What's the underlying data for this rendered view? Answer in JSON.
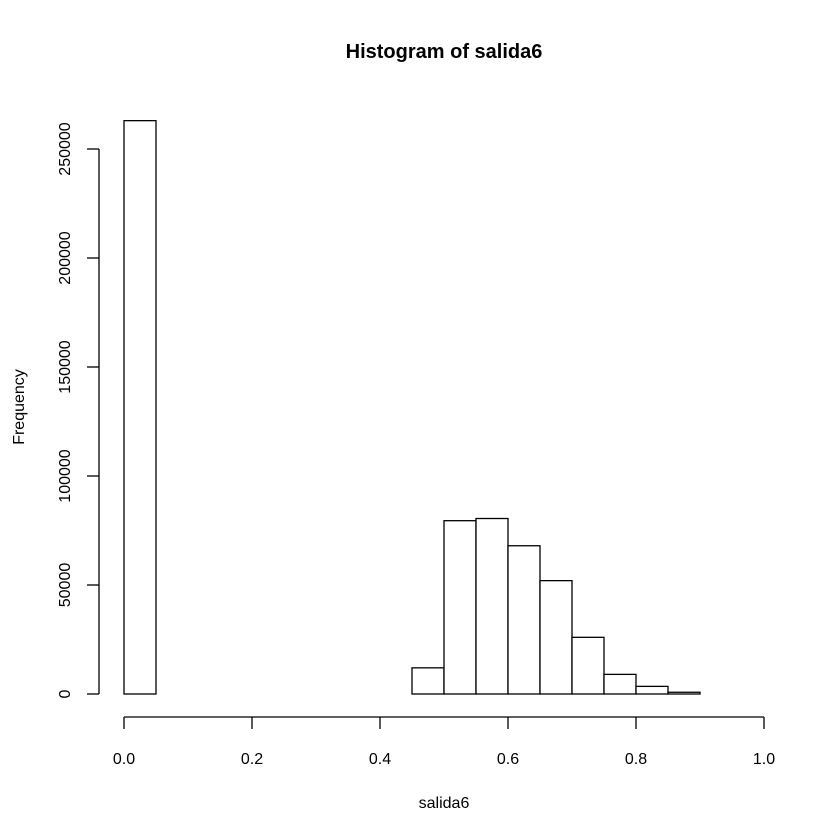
{
  "chart_data": {
    "type": "bar",
    "title": "Histogram of salida6",
    "xlabel": "salida6",
    "ylabel": "Frequency",
    "xlim": [
      0,
      1
    ],
    "ylim": [
      0,
      260000
    ],
    "grid": false,
    "bar_fill": "#ffffff",
    "bar_stroke": "#000000",
    "x_ticks": [
      {
        "value": 0.0,
        "label": "0.0"
      },
      {
        "value": 0.2,
        "label": "0.2"
      },
      {
        "value": 0.4,
        "label": "0.4"
      },
      {
        "value": 0.6,
        "label": "0.6"
      },
      {
        "value": 0.8,
        "label": "0.8"
      },
      {
        "value": 1.0,
        "label": "1.0"
      }
    ],
    "y_ticks": [
      {
        "value": 0,
        "label": "0"
      },
      {
        "value": 50000,
        "label": "50000"
      },
      {
        "value": 100000,
        "label": "100000"
      },
      {
        "value": 150000,
        "label": "150000"
      },
      {
        "value": 200000,
        "label": "200000"
      },
      {
        "value": 250000,
        "label": "250000"
      }
    ],
    "bins": [
      {
        "start": 0.0,
        "end": 0.05,
        "count": 263000
      },
      {
        "start": 0.05,
        "end": 0.1,
        "count": 0
      },
      {
        "start": 0.1,
        "end": 0.15,
        "count": 0
      },
      {
        "start": 0.15,
        "end": 0.2,
        "count": 0
      },
      {
        "start": 0.2,
        "end": 0.25,
        "count": 0
      },
      {
        "start": 0.25,
        "end": 0.3,
        "count": 0
      },
      {
        "start": 0.3,
        "end": 0.35,
        "count": 0
      },
      {
        "start": 0.35,
        "end": 0.4,
        "count": 0
      },
      {
        "start": 0.4,
        "end": 0.45,
        "count": 0
      },
      {
        "start": 0.45,
        "end": 0.5,
        "count": 12000
      },
      {
        "start": 0.5,
        "end": 0.55,
        "count": 79500
      },
      {
        "start": 0.55,
        "end": 0.6,
        "count": 80500
      },
      {
        "start": 0.6,
        "end": 0.65,
        "count": 68000
      },
      {
        "start": 0.65,
        "end": 0.7,
        "count": 52000
      },
      {
        "start": 0.7,
        "end": 0.75,
        "count": 26000
      },
      {
        "start": 0.75,
        "end": 0.8,
        "count": 9000
      },
      {
        "start": 0.8,
        "end": 0.85,
        "count": 3500
      },
      {
        "start": 0.85,
        "end": 0.9,
        "count": 800
      },
      {
        "start": 0.9,
        "end": 0.95,
        "count": 0
      },
      {
        "start": 0.95,
        "end": 1.0,
        "count": 0
      }
    ]
  }
}
